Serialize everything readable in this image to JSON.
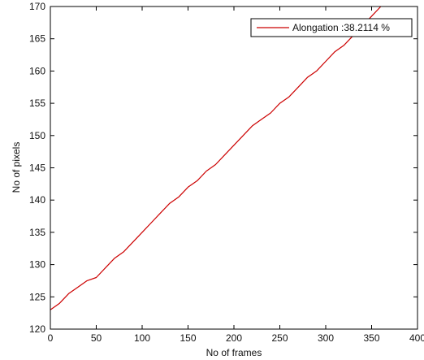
{
  "chart_data": {
    "type": "line",
    "xlabel": "No of frames",
    "ylabel": "No of pixels",
    "xlim": [
      0,
      400
    ],
    "ylim": [
      120,
      170
    ],
    "xticks": [
      0,
      50,
      100,
      150,
      200,
      250,
      300,
      350,
      400
    ],
    "yticks": [
      120,
      125,
      130,
      135,
      140,
      145,
      150,
      155,
      160,
      165,
      170
    ],
    "grid": false,
    "legend_position": "top-right",
    "series": [
      {
        "name": "Alongation :38.2114 %",
        "color": "#cc0000",
        "x": [
          0,
          10,
          20,
          30,
          40,
          50,
          60,
          70,
          80,
          90,
          100,
          110,
          120,
          130,
          140,
          150,
          160,
          170,
          180,
          190,
          200,
          210,
          220,
          230,
          240,
          250,
          260,
          270,
          280,
          290,
          300,
          310,
          320,
          330,
          340,
          350,
          360
        ],
        "y": [
          123,
          124,
          125.5,
          126.5,
          127.5,
          128,
          129.5,
          131,
          132,
          133.5,
          135,
          136.5,
          138,
          139.5,
          140.5,
          142,
          143,
          144.5,
          145.5,
          147,
          148.5,
          150,
          151.5,
          152.5,
          153.5,
          155,
          156,
          157.5,
          159,
          160,
          161.5,
          163,
          164,
          165.5,
          167,
          168.5,
          170
        ]
      }
    ]
  }
}
